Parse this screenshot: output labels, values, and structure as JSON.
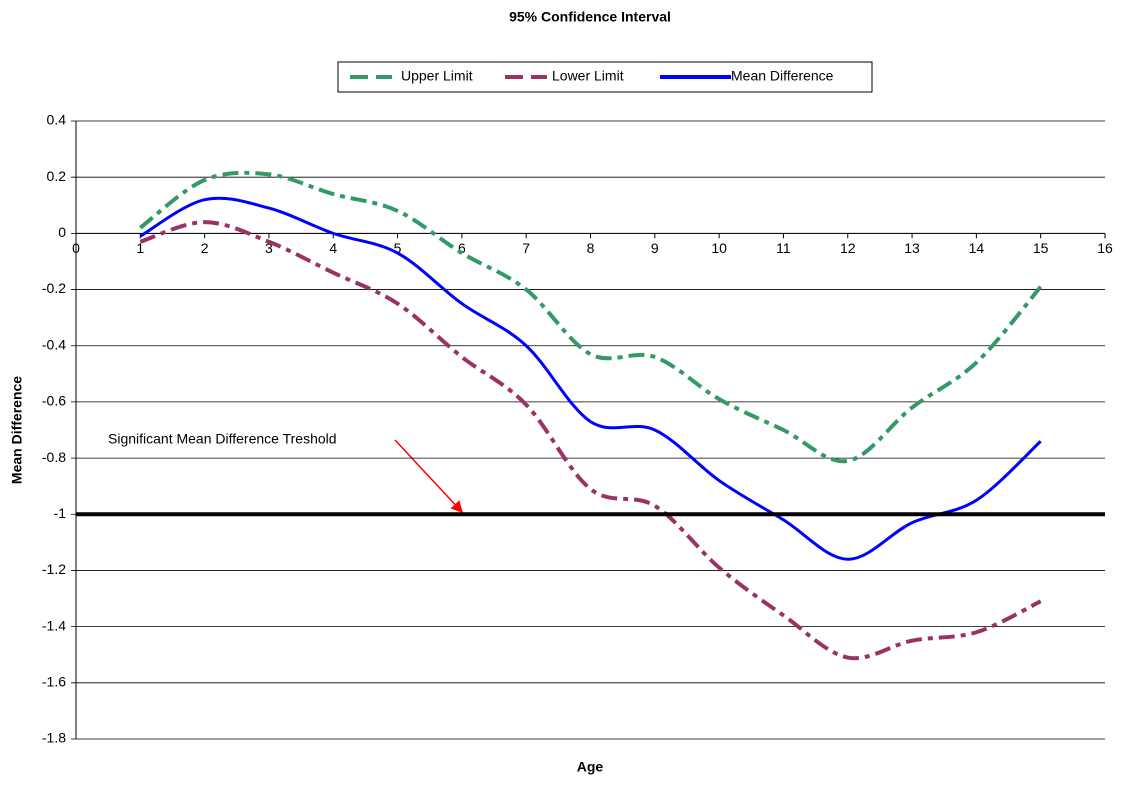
{
  "chart_data": {
    "type": "line",
    "title": "95% Confidence Interval",
    "x_label": "Age",
    "y_label": "Mean Difference",
    "x": [
      1,
      2,
      3,
      4,
      5,
      6,
      7,
      8,
      9,
      10,
      11,
      12,
      13,
      14,
      15
    ],
    "series": [
      {
        "name": "Upper Limit",
        "color": "#339966",
        "style": "dash-dot",
        "values": [
          0.02,
          0.19,
          0.21,
          0.14,
          0.08,
          -0.07,
          -0.2,
          -0.43,
          -0.44,
          -0.59,
          -0.7,
          -0.81,
          -0.62,
          -0.46,
          -0.19
        ]
      },
      {
        "name": "Lower Limit",
        "color": "#993366",
        "style": "dash-dot",
        "values": [
          -0.03,
          0.04,
          -0.03,
          -0.14,
          -0.25,
          -0.44,
          -0.61,
          -0.91,
          -0.97,
          -1.19,
          -1.36,
          -1.51,
          -1.45,
          -1.42,
          -1.31
        ]
      },
      {
        "name": "Mean Difference",
        "color": "#0000ff",
        "style": "solid",
        "values": [
          -0.01,
          0.12,
          0.09,
          0,
          -0.07,
          -0.25,
          -0.4,
          -0.67,
          -0.7,
          -0.88,
          -1.02,
          -1.16,
          -1.03,
          -0.95,
          -0.74
        ]
      }
    ],
    "smooth": true,
    "threshold": {
      "value": -1,
      "label": "Significant Mean Difference Treshold",
      "color": "#000000"
    },
    "xlim": [
      0,
      16
    ],
    "xticks": [
      0,
      1,
      2,
      3,
      4,
      5,
      6,
      7,
      8,
      9,
      10,
      11,
      12,
      13,
      14,
      15,
      16
    ],
    "ylim": [
      -1.8,
      0.4
    ],
    "yticks": [
      0.4,
      0.2,
      0,
      -0.2,
      -0.4,
      -0.6,
      -0.8,
      -1,
      -1.2,
      -1.4,
      -1.6,
      -1.8
    ],
    "grid": true,
    "legend": "top"
  }
}
